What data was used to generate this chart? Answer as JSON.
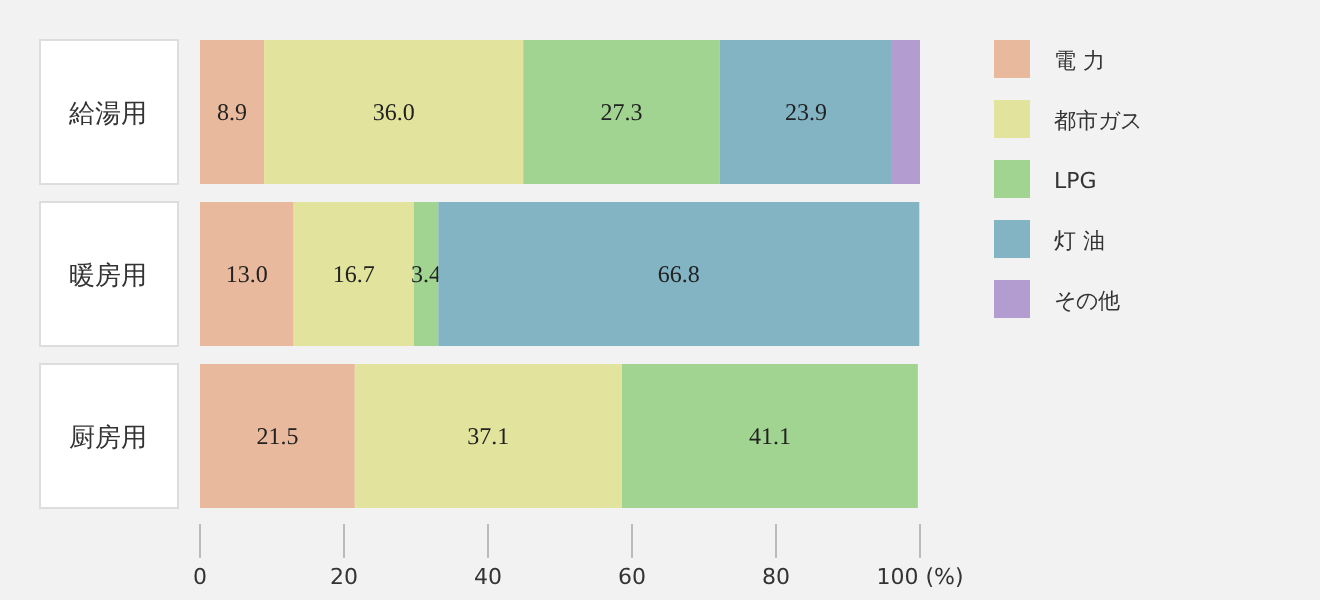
{
  "chart_data": {
    "type": "bar",
    "orientation": "horizontal",
    "stacked": true,
    "categories": [
      "給湯用",
      "暖房用",
      "厨房用"
    ],
    "series": [
      {
        "name": "電 力",
        "color": "#e8b99c",
        "values": [
          8.9,
          13.0,
          21.5
        ],
        "value_labels": [
          "8.9",
          "13.0",
          "21.5"
        ]
      },
      {
        "name": "都市ガス",
        "color": "#e2e49e",
        "values": [
          36.0,
          16.7,
          37.1
        ],
        "value_labels": [
          "36.0",
          "16.7",
          "37.1"
        ]
      },
      {
        "name": "LPG",
        "color": "#a0d490",
        "values": [
          27.3,
          3.4,
          41.1
        ],
        "value_labels": [
          "27.3",
          "3.4",
          "41.1"
        ]
      },
      {
        "name": "灯 油",
        "color": "#82b4c4",
        "values": [
          23.9,
          66.8,
          null
        ],
        "value_labels": [
          "23.9",
          "66.8",
          null
        ]
      },
      {
        "name": "その他",
        "color": "#b39dd0",
        "values": [
          3.9,
          null,
          null
        ],
        "value_labels": [
          null,
          null,
          null
        ]
      }
    ],
    "xlim": [
      0,
      100
    ],
    "xticks": [
      0,
      20,
      40,
      60,
      80,
      {
        "value": 100,
        "label": "100 (%)"
      }
    ],
    "grid": false,
    "legend": "right"
  }
}
